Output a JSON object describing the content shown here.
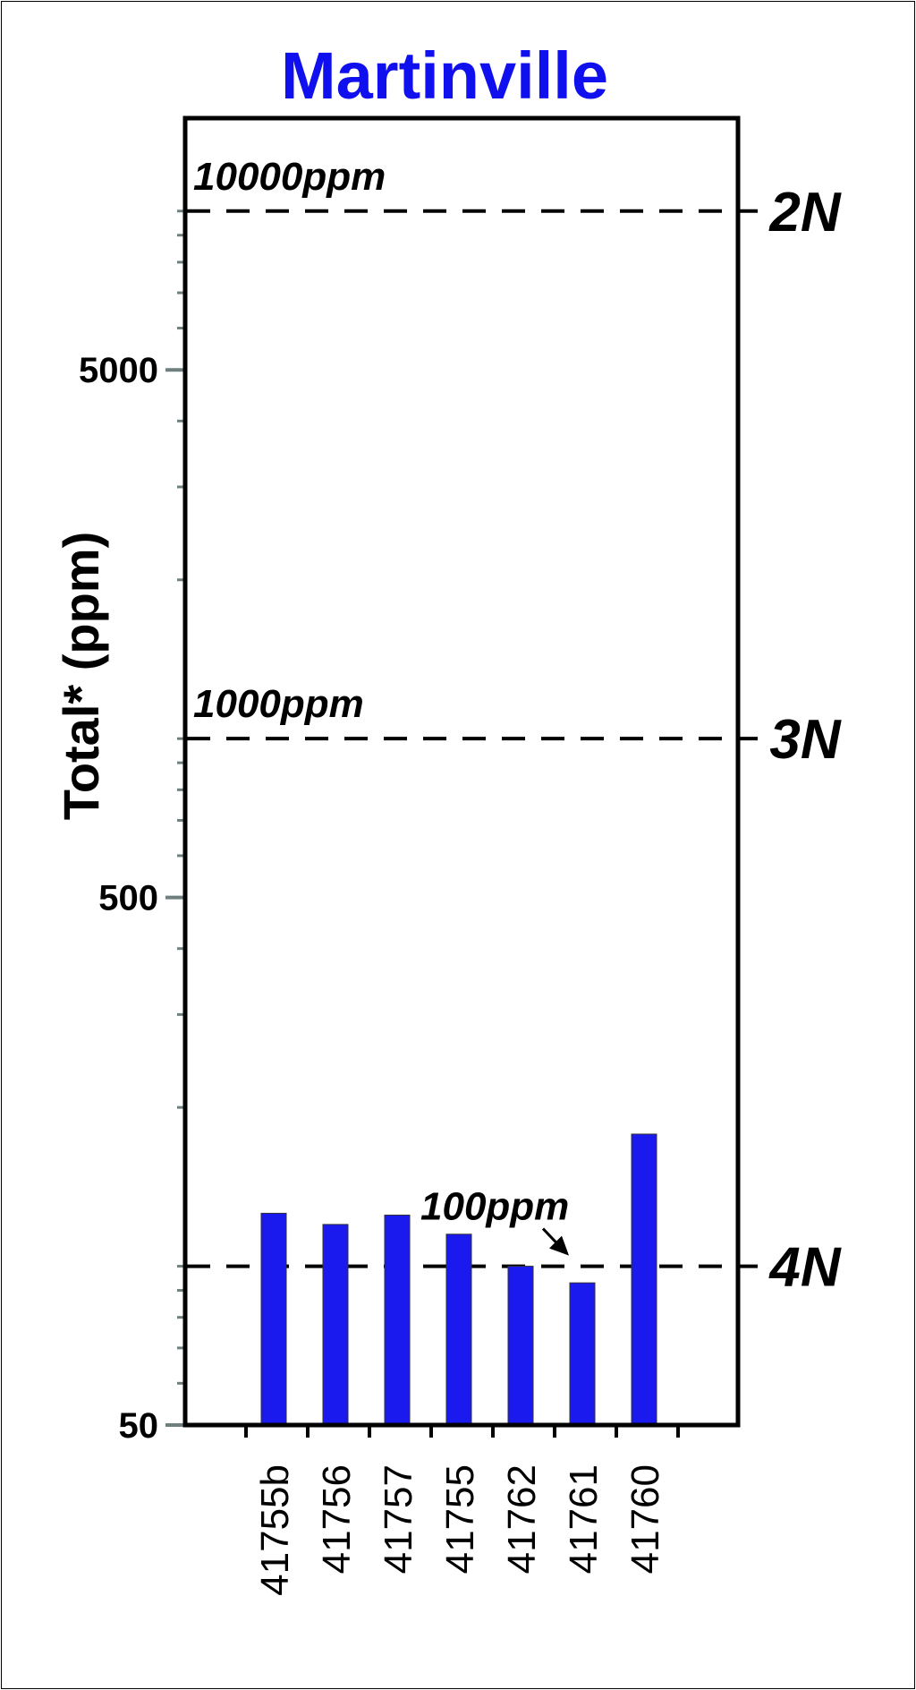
{
  "chart_data": {
    "type": "bar",
    "title": "Martinville",
    "ylabel": "Total* (ppm)",
    "xlabel": "",
    "yscale": "log",
    "ylim": [
      50,
      15000
    ],
    "yticks": [
      {
        "value": 50,
        "label": "50"
      },
      {
        "value": 500,
        "label": "500"
      },
      {
        "value": 5000,
        "label": "5000"
      }
    ],
    "categories": [
      "41755b",
      "41756",
      "41757",
      "41755",
      "41762",
      "41761",
      "41760"
    ],
    "values": [
      126,
      120,
      125,
      115,
      100,
      93,
      178
    ],
    "bar_color": "#1a1aee",
    "reference_lines": [
      {
        "value": 10000,
        "label": "10000ppm",
        "side_label": "2N"
      },
      {
        "value": 1000,
        "label": "1000ppm",
        "side_label": "3N"
      },
      {
        "value": 100,
        "label": "100ppm",
        "side_label": "4N"
      }
    ],
    "grid": false
  }
}
